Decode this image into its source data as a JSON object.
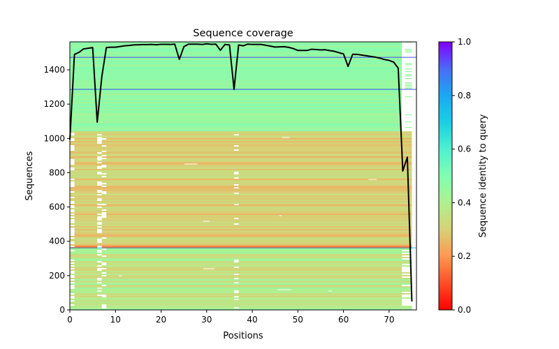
{
  "chart_data": {
    "type": "heatmap",
    "title": "Sequence coverage",
    "xlabel": "Positions",
    "ylabel": "Sequences",
    "xlim": [
      0,
      76
    ],
    "ylim": [
      0,
      1563
    ],
    "x_ticks": [
      0,
      10,
      20,
      30,
      40,
      50,
      60,
      70
    ],
    "y_ticks": [
      0,
      200,
      400,
      600,
      800,
      1000,
      1200,
      1400
    ],
    "colorbar": {
      "label": "Sequence identity to query",
      "colormap": "rainbow",
      "range": [
        0.0,
        1.0
      ],
      "ticks": [
        "0.0",
        "0.2",
        "0.4",
        "0.6",
        "0.8",
        "1.0"
      ]
    },
    "heatmap_regions": [
      {
        "from_seq": 0,
        "to_seq": 360,
        "dominant_identity": [
          0.3,
          0.45
        ],
        "description": "yellow-green/orange mix"
      },
      {
        "from_seq": 360,
        "to_seq": 375,
        "dominant_identity": [
          0.1,
          0.2
        ],
        "description": "red-orange band"
      },
      {
        "from_seq": 375,
        "to_seq": 1050,
        "dominant_identity": [
          0.25,
          0.35
        ],
        "description": "orange/yellow block"
      },
      {
        "from_seq": 1050,
        "to_seq": 1563,
        "dominant_identity": [
          0.42,
          0.5
        ],
        "description": "light green block"
      }
    ],
    "highlight_lines": [
      {
        "seq": 1473,
        "color": "#3b4cf0"
      },
      {
        "seq": 1286,
        "color": "#3b4cf0"
      },
      {
        "seq": 362,
        "color": "#20c8d8"
      }
    ],
    "series": [
      {
        "name": "coverage",
        "color": "#000000",
        "x": [
          0,
          1,
          2,
          3,
          4,
          5,
          6,
          7,
          8,
          9,
          10,
          11,
          12,
          13,
          14,
          15,
          16,
          17,
          18,
          19,
          20,
          21,
          22,
          23,
          24,
          25,
          26,
          27,
          28,
          29,
          30,
          31,
          32,
          33,
          34,
          35,
          36,
          37,
          38,
          39,
          40,
          41,
          42,
          43,
          44,
          45,
          46,
          47,
          48,
          49,
          50,
          51,
          52,
          53,
          54,
          55,
          56,
          57,
          58,
          59,
          60,
          61,
          62,
          63,
          64,
          65,
          66,
          67,
          68,
          69,
          70,
          71,
          72,
          73,
          74,
          75
        ],
        "y": [
          993,
          1490,
          1502,
          1522,
          1526,
          1530,
          1095,
          1359,
          1530,
          1532,
          1532,
          1536,
          1540,
          1542,
          1545,
          1546,
          1547,
          1547,
          1548,
          1546,
          1549,
          1549,
          1548,
          1550,
          1461,
          1535,
          1550,
          1550,
          1550,
          1548,
          1552,
          1549,
          1550,
          1514,
          1548,
          1545,
          1286,
          1545,
          1540,
          1550,
          1548,
          1548,
          1548,
          1543,
          1538,
          1533,
          1534,
          1535,
          1531,
          1524,
          1513,
          1513,
          1513,
          1520,
          1518,
          1516,
          1517,
          1512,
          1508,
          1500,
          1493,
          1420,
          1490,
          1490,
          1486,
          1482,
          1478,
          1474,
          1468,
          1460,
          1455,
          1445,
          1410,
          810,
          891,
          49
        ]
      }
    ]
  }
}
